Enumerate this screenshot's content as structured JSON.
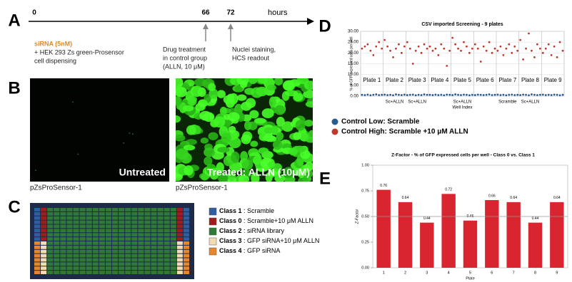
{
  "panel_letters": [
    "A",
    "B",
    "C",
    "D",
    "E"
  ],
  "timeline": {
    "marks": [
      "0",
      "66",
      "72"
    ],
    "unit": "hours",
    "events": [
      {
        "lines": [
          "siRNA (5nM)",
          "+ HEK 293 Zs green-Prosensor",
          "cell dispensing"
        ]
      },
      {
        "lines": [
          "Drug treatment",
          "in control group",
          "(ALLN, 10 μM)"
        ]
      },
      {
        "lines": [
          "Nuclei staining,",
          "HCS readout"
        ]
      }
    ]
  },
  "images": [
    {
      "overlay": "Untreated",
      "caption": "pZsProSensor-1"
    },
    {
      "overlay": "Treated: ALLN (10μM)",
      "caption": "pZsProSensor-1"
    }
  ],
  "plate_legend": [
    {
      "class": "Class 1",
      "desc": " : Scramble",
      "color": "#2f5f9e"
    },
    {
      "class": "Class 0",
      "desc": " : Scramble+10 μM ALLN",
      "color": "#a11d1d"
    },
    {
      "class": "Class 2",
      "desc": " : siRNA library",
      "color": "#2e7a36"
    },
    {
      "class": "Class 3",
      "desc": " : GFP siRNA+10 μM ALLN",
      "color": "#f3dcb4"
    },
    {
      "class": "Class 4",
      "desc": " : GFP siRNA",
      "color": "#e8862a"
    }
  ],
  "chart_data": [
    {
      "type": "scatter",
      "title": "CSV imported Screening - 9 plates",
      "y_label": "% of GFP expressed cells per well",
      "x_label": "Well Index",
      "plates": [
        "Plate 1",
        "Plate 2",
        "Plate 3",
        "Plate 4",
        "Plate 5",
        "Plate 6",
        "Plate 7",
        "Plate 8",
        "Plate 9"
      ],
      "x_annotations": [
        "Sc+ALLN",
        "Sc+ALLN",
        "Sc+ALLN",
        "Scramble",
        "Sc+ALLN"
      ],
      "x": [
        1,
        2,
        3,
        4,
        5,
        6,
        7,
        8,
        9,
        10,
        11,
        12,
        13,
        14,
        15,
        16,
        17,
        18,
        19,
        20,
        21,
        22,
        23,
        24,
        25,
        26,
        27,
        28,
        29,
        30,
        31,
        32,
        33,
        34,
        35,
        36,
        37,
        38,
        39,
        40,
        41,
        42,
        43,
        44,
        45,
        46,
        47,
        48,
        49,
        50,
        51,
        52,
        53,
        54,
        55,
        56,
        57,
        58,
        59,
        60,
        61,
        62,
        63,
        64,
        65,
        66,
        67,
        68,
        69,
        70,
        71,
        72
      ],
      "xlim": [
        0.5,
        72.5
      ],
      "ylim": [
        0,
        30
      ],
      "yticks": [
        {
          "value": 0,
          "label": "0.00"
        },
        {
          "value": 5,
          "label": "5.00"
        },
        {
          "value": 10,
          "label": "10.00"
        },
        {
          "value": 15,
          "label": "15.00"
        },
        {
          "value": 20,
          "label": "20.00"
        },
        {
          "value": 25,
          "label": "25.00"
        },
        {
          "value": 30,
          "label": "30.00"
        }
      ],
      "grid": true,
      "series": [
        {
          "name": "Control Low: Scramble",
          "color": "#2b5a8f",
          "values": [
            0.6,
            0.5,
            0.7,
            0.4,
            0.6,
            0.8,
            0.5,
            0.6,
            0.7,
            0.5,
            0.6,
            0.4,
            0.8,
            0.6,
            0.5,
            0.7,
            0.5,
            0.6,
            0.7,
            0.4,
            0.6,
            0.5,
            0.8,
            0.6,
            0.6,
            0.5,
            0.7,
            0.5,
            0.6,
            0.4,
            0.7,
            0.6,
            0.5,
            0.8,
            0.6,
            0.5,
            0.7,
            0.6,
            0.4,
            0.6,
            0.5,
            0.7,
            0.6,
            0.5,
            0.6,
            0.8,
            0.5,
            0.6,
            0.7,
            0.5,
            0.6,
            0.4,
            0.6,
            0.7,
            0.5,
            0.6,
            0.5,
            0.7,
            0.6,
            0.4,
            0.8,
            0.6,
            0.5,
            0.6,
            0.7,
            0.5,
            0.6,
            0.5,
            0.7,
            0.6,
            0.4,
            0.6
          ]
        },
        {
          "name": "Control High: Scramble +10 μM ALLN",
          "color": "#c0392b",
          "values": [
            22,
            23,
            24,
            21,
            19,
            23,
            25,
            22,
            26,
            23,
            21,
            18,
            22,
            24,
            20,
            23,
            25,
            22,
            15,
            21,
            23,
            20,
            24,
            22,
            23,
            21,
            22,
            19,
            24,
            22,
            14,
            21,
            27,
            24,
            22,
            21,
            25,
            23,
            20,
            22,
            24,
            22,
            16,
            23,
            21,
            25,
            20,
            22,
            21,
            23,
            19,
            22,
            24,
            20,
            23,
            21,
            26,
            17,
            22,
            29,
            21,
            18,
            24,
            22,
            20,
            22,
            24,
            19,
            23,
            18,
            25,
            21
          ]
        }
      ]
    },
    {
      "type": "bar",
      "title": "Z-Factor - % of GFP expressed cells per well - Class 0 vs. Class 1",
      "y_label": "Z-Factor",
      "x_label": "Plate",
      "categories": [
        "1",
        "2",
        "3",
        "4",
        "5",
        "6",
        "7",
        "8",
        "9"
      ],
      "values": [
        0.76,
        0.64,
        0.44,
        0.72,
        0.46,
        0.66,
        0.64,
        0.44,
        0.64
      ],
      "color": "#d9252f",
      "reference_line": 0.5,
      "ylim": [
        0,
        1
      ],
      "yticks": [
        {
          "value": 0,
          "label": "0.00"
        },
        {
          "value": 0.25,
          "label": "0.25"
        },
        {
          "value": 0.5,
          "label": "0.50"
        },
        {
          "value": 0.75,
          "label": "0.75"
        },
        {
          "value": 1,
          "label": "1.00"
        }
      ]
    }
  ]
}
